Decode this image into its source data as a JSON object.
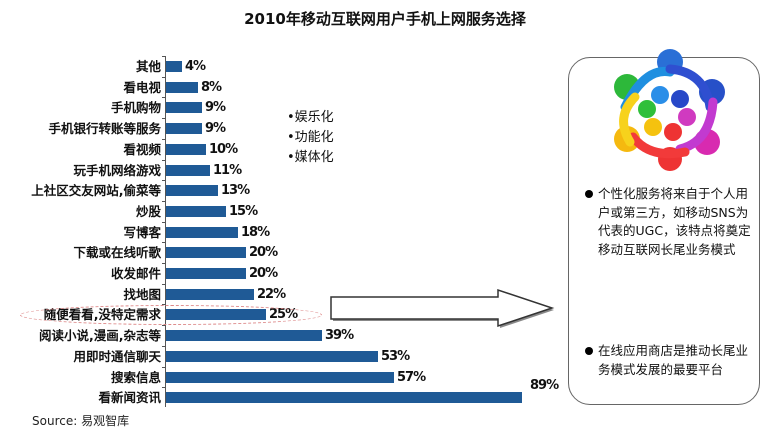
{
  "title": "2010年移动互联网用户手机上网服务选择",
  "tags": [
    "•娱乐化",
    "•功能化",
    "•媒体化"
  ],
  "source": "Source: 易观智库",
  "panel": {
    "bullets": [
      "个性化服务将来自于个人用户或第三方，如移动SNS为代表的UGC，该特点将奠定移动互联网长尾业务模式",
      "在线应用商店是推动长尾业务模式发展的最要平台"
    ]
  },
  "colors": {
    "bar": "#1f5a96",
    "highlight_border": "#d88888"
  },
  "highlighted_category": "随便看看,没特定需求",
  "chart_data": {
    "type": "bar",
    "orientation": "horizontal",
    "title": "2010年移动互联网用户手机上网服务选择",
    "categories": [
      "其他",
      "看电视",
      "手机购物",
      "手机银行转账等服务",
      "看视频",
      "玩手机网络游戏",
      "上社区交友网站,偷菜等",
      "炒股",
      "写博客",
      "下载或在线听歌",
      "收发邮件",
      "找地图",
      "随便看看,没特定需求",
      "阅读小说,漫画,杂志等",
      "用即时通信聊天",
      "搜索信息",
      "看新闻资讯"
    ],
    "values": [
      4,
      8,
      9,
      9,
      10,
      11,
      13,
      15,
      18,
      20,
      20,
      22,
      25,
      39,
      53,
      57,
      89
    ],
    "labels": [
      "4%",
      "8%",
      "9%",
      "9%",
      "10%",
      "11%",
      "13%",
      "15%",
      "18%",
      "20%",
      "20%",
      "22%",
      "25%",
      "39%",
      "53%",
      "57%",
      "89%"
    ],
    "unit": "%",
    "xlabel": "",
    "ylabel": "",
    "grid": false,
    "legend": null,
    "annotations": [
      "随便看看,没特定需求 highlighted with dashed ellipse and arrow to text panel"
    ],
    "source": "易观智库"
  }
}
